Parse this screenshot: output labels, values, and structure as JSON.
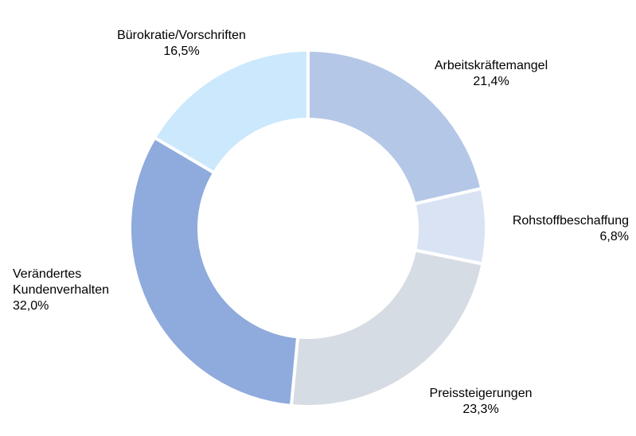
{
  "chart_data": {
    "type": "pie",
    "variant": "donut",
    "title": "",
    "slices": [
      {
        "label_lines": [
          "Arbeitskräftemangel"
        ],
        "value": 21.4,
        "value_label": "21,4%",
        "color": "#b4c7e7"
      },
      {
        "label_lines": [
          "Rohstoffbeschaffung"
        ],
        "value": 6.8,
        "value_label": "6,8%",
        "color": "#dae3f3"
      },
      {
        "label_lines": [
          "Preissteigerungen"
        ],
        "value": 23.3,
        "value_label": "23,3%",
        "color": "#d6dce4"
      },
      {
        "label_lines": [
          "Verändertes",
          "Kundenverhalten"
        ],
        "value": 32.0,
        "value_label": "32,0%",
        "color": "#8faadc"
      },
      {
        "label_lines": [
          "Bürokratie/Vorschriften"
        ],
        "value": 16.5,
        "value_label": "16,5%",
        "color": "#cce8fd"
      }
    ],
    "legend": "none"
  }
}
